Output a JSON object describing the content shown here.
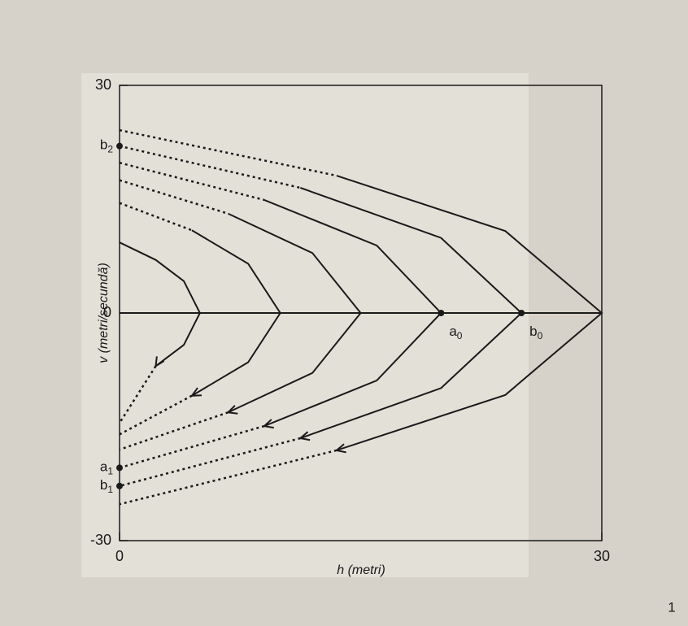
{
  "chart_data": {
    "type": "line",
    "x_label": "h (metri)",
    "y_label": "v (metri/secundă)",
    "xlim": [
      0,
      30
    ],
    "ylim": [
      -30,
      30
    ],
    "xticks": [
      0,
      30
    ],
    "yticks": [
      -30,
      0,
      30
    ],
    "color": "#1a1a1a",
    "series": [
      {
        "x": [
          0,
          2.25,
          4,
          5,
          4,
          2.25,
          0
        ],
        "values": [
          9.3,
          7,
          4.2,
          0,
          -4.2,
          -7,
          -14.5
        ]
      },
      {
        "x": [
          0,
          4.5,
          8,
          10,
          8,
          4.5,
          0
        ],
        "values": [
          14.5,
          10.9,
          6.5,
          0,
          -6.5,
          -10.9,
          -16
        ]
      },
      {
        "x": [
          0,
          6.75,
          12,
          15,
          12,
          6.75,
          0
        ],
        "values": [
          17.5,
          13.1,
          7.9,
          0,
          -7.9,
          -13.1,
          -18
        ]
      },
      {
        "x": [
          0,
          9,
          16,
          20,
          16,
          9,
          0
        ],
        "values": [
          19.8,
          14.9,
          8.9,
          0,
          -8.9,
          -14.9,
          -20.4
        ]
      },
      {
        "x": [
          0,
          11.25,
          20,
          25,
          20,
          11.25,
          0
        ],
        "values": [
          22,
          16.5,
          9.9,
          0,
          -9.9,
          -16.5,
          -22.8
        ]
      },
      {
        "x": [
          0,
          13.5,
          24,
          30,
          24,
          13.5,
          0
        ],
        "values": [
          24.1,
          18.1,
          10.8,
          0,
          -10.8,
          -18.1,
          -25.2
        ]
      }
    ],
    "annotations": [
      {
        "text": "b",
        "sub": "2",
        "x": 0,
        "y": 22
      },
      {
        "text": "a",
        "sub": "1",
        "x": 0,
        "y": -20.4
      },
      {
        "text": "b",
        "sub": "1",
        "x": 0,
        "y": -22.8
      },
      {
        "text": "a",
        "sub": "0",
        "x": 20,
        "y": 0
      },
      {
        "text": "b",
        "sub": "0",
        "x": 25,
        "y": 0
      }
    ],
    "page_number": "1"
  }
}
